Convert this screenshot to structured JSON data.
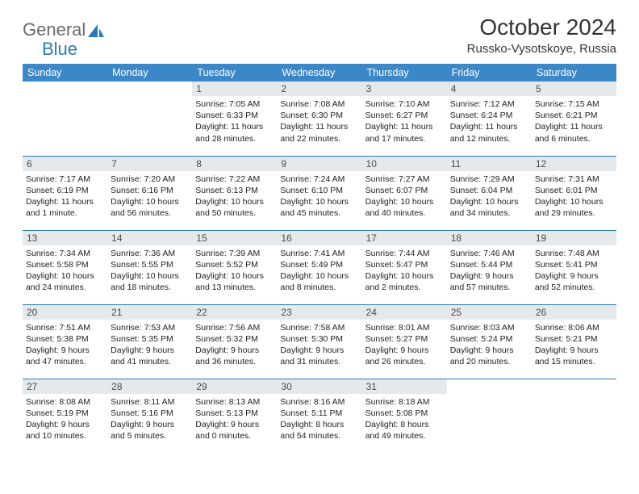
{
  "brand": {
    "part1": "General",
    "part2": "Blue"
  },
  "title": "October 2024",
  "location": "Russko-Vysotskoye, Russia",
  "colors": {
    "header_bg": "#3b87c8",
    "header_text": "#ffffff",
    "daynum_bg": "#e6e9ec",
    "border": "#2a7ab9",
    "logo_gray": "#6a6a6a",
    "logo_blue": "#2a7ab9"
  },
  "day_headers": [
    "Sunday",
    "Monday",
    "Tuesday",
    "Wednesday",
    "Thursday",
    "Friday",
    "Saturday"
  ],
  "weeks": [
    [
      null,
      null,
      {
        "n": "1",
        "sunrise": "7:05 AM",
        "sunset": "6:33 PM",
        "daylight": "11 hours and 28 minutes."
      },
      {
        "n": "2",
        "sunrise": "7:08 AM",
        "sunset": "6:30 PM",
        "daylight": "11 hours and 22 minutes."
      },
      {
        "n": "3",
        "sunrise": "7:10 AM",
        "sunset": "6:27 PM",
        "daylight": "11 hours and 17 minutes."
      },
      {
        "n": "4",
        "sunrise": "7:12 AM",
        "sunset": "6:24 PM",
        "daylight": "11 hours and 12 minutes."
      },
      {
        "n": "5",
        "sunrise": "7:15 AM",
        "sunset": "6:21 PM",
        "daylight": "11 hours and 6 minutes."
      }
    ],
    [
      {
        "n": "6",
        "sunrise": "7:17 AM",
        "sunset": "6:19 PM",
        "daylight": "11 hours and 1 minute."
      },
      {
        "n": "7",
        "sunrise": "7:20 AM",
        "sunset": "6:16 PM",
        "daylight": "10 hours and 56 minutes."
      },
      {
        "n": "8",
        "sunrise": "7:22 AM",
        "sunset": "6:13 PM",
        "daylight": "10 hours and 50 minutes."
      },
      {
        "n": "9",
        "sunrise": "7:24 AM",
        "sunset": "6:10 PM",
        "daylight": "10 hours and 45 minutes."
      },
      {
        "n": "10",
        "sunrise": "7:27 AM",
        "sunset": "6:07 PM",
        "daylight": "10 hours and 40 minutes."
      },
      {
        "n": "11",
        "sunrise": "7:29 AM",
        "sunset": "6:04 PM",
        "daylight": "10 hours and 34 minutes."
      },
      {
        "n": "12",
        "sunrise": "7:31 AM",
        "sunset": "6:01 PM",
        "daylight": "10 hours and 29 minutes."
      }
    ],
    [
      {
        "n": "13",
        "sunrise": "7:34 AM",
        "sunset": "5:58 PM",
        "daylight": "10 hours and 24 minutes."
      },
      {
        "n": "14",
        "sunrise": "7:36 AM",
        "sunset": "5:55 PM",
        "daylight": "10 hours and 18 minutes."
      },
      {
        "n": "15",
        "sunrise": "7:39 AM",
        "sunset": "5:52 PM",
        "daylight": "10 hours and 13 minutes."
      },
      {
        "n": "16",
        "sunrise": "7:41 AM",
        "sunset": "5:49 PM",
        "daylight": "10 hours and 8 minutes."
      },
      {
        "n": "17",
        "sunrise": "7:44 AM",
        "sunset": "5:47 PM",
        "daylight": "10 hours and 2 minutes."
      },
      {
        "n": "18",
        "sunrise": "7:46 AM",
        "sunset": "5:44 PM",
        "daylight": "9 hours and 57 minutes."
      },
      {
        "n": "19",
        "sunrise": "7:48 AM",
        "sunset": "5:41 PM",
        "daylight": "9 hours and 52 minutes."
      }
    ],
    [
      {
        "n": "20",
        "sunrise": "7:51 AM",
        "sunset": "5:38 PM",
        "daylight": "9 hours and 47 minutes."
      },
      {
        "n": "21",
        "sunrise": "7:53 AM",
        "sunset": "5:35 PM",
        "daylight": "9 hours and 41 minutes."
      },
      {
        "n": "22",
        "sunrise": "7:56 AM",
        "sunset": "5:32 PM",
        "daylight": "9 hours and 36 minutes."
      },
      {
        "n": "23",
        "sunrise": "7:58 AM",
        "sunset": "5:30 PM",
        "daylight": "9 hours and 31 minutes."
      },
      {
        "n": "24",
        "sunrise": "8:01 AM",
        "sunset": "5:27 PM",
        "daylight": "9 hours and 26 minutes."
      },
      {
        "n": "25",
        "sunrise": "8:03 AM",
        "sunset": "5:24 PM",
        "daylight": "9 hours and 20 minutes."
      },
      {
        "n": "26",
        "sunrise": "8:06 AM",
        "sunset": "5:21 PM",
        "daylight": "9 hours and 15 minutes."
      }
    ],
    [
      {
        "n": "27",
        "sunrise": "8:08 AM",
        "sunset": "5:19 PM",
        "daylight": "9 hours and 10 minutes."
      },
      {
        "n": "28",
        "sunrise": "8:11 AM",
        "sunset": "5:16 PM",
        "daylight": "9 hours and 5 minutes."
      },
      {
        "n": "29",
        "sunrise": "8:13 AM",
        "sunset": "5:13 PM",
        "daylight": "9 hours and 0 minutes."
      },
      {
        "n": "30",
        "sunrise": "8:16 AM",
        "sunset": "5:11 PM",
        "daylight": "8 hours and 54 minutes."
      },
      {
        "n": "31",
        "sunrise": "8:18 AM",
        "sunset": "5:08 PM",
        "daylight": "8 hours and 49 minutes."
      },
      null,
      null
    ]
  ],
  "labels": {
    "sunrise": "Sunrise:",
    "sunset": "Sunset:",
    "daylight": "Daylight:"
  }
}
